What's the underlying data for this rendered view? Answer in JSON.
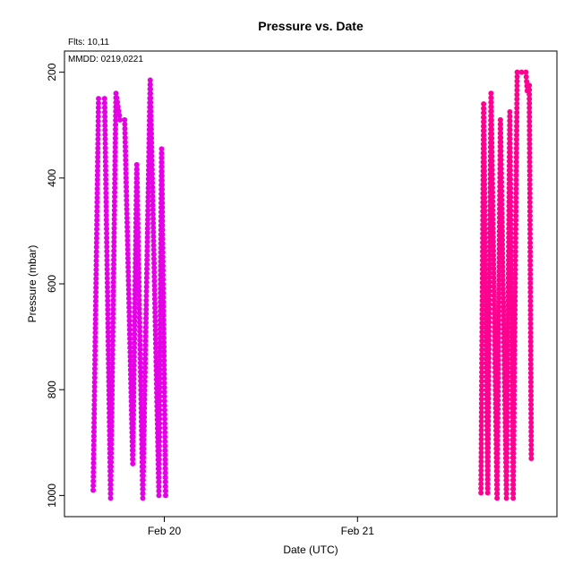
{
  "chart_data": {
    "type": "scatter",
    "title": "Pressure  vs. Date",
    "xlabel": "Date (UTC)",
    "ylabel": "Pressure (mbar)",
    "annotations": [
      "Flts: 10,11",
      "MMDD: 0219,0221"
    ],
    "x_ticks": [
      {
        "x": "2022-02-20T00:00",
        "label": "Feb 20"
      },
      {
        "x": "2022-02-21T00:00",
        "label": "Feb 21"
      }
    ],
    "y_ticks": [
      200,
      400,
      600,
      800,
      1000
    ],
    "xlim": [
      "2022-02-19T11:36",
      "2022-02-22T00:46"
    ],
    "ylim": [
      1040,
      160
    ],
    "y_reversed": true,
    "grid": false,
    "legend": "none",
    "series": [
      {
        "color": "#E600E6",
        "points": [
          [
            "2022-02-19T15:10",
            990
          ],
          [
            "2022-02-19T15:50",
            250
          ],
          [
            "2022-02-19T16:35",
            250
          ],
          [
            "2022-02-19T17:20",
            1005
          ],
          [
            "2022-02-19T18:00",
            240
          ],
          [
            "2022-02-19T18:30",
            290
          ],
          [
            "2022-02-19T19:05",
            290
          ],
          [
            "2022-02-19T20:05",
            940
          ],
          [
            "2022-02-19T20:35",
            375
          ],
          [
            "2022-02-19T21:20",
            1005
          ],
          [
            "2022-02-19T22:15",
            215
          ],
          [
            "2022-02-19T23:20",
            1000
          ],
          [
            "2022-02-19T23:40",
            345
          ],
          [
            "2022-02-20T00:10",
            1000
          ]
        ]
      },
      {
        "color": "#FF0090",
        "points": [
          [
            "2022-02-21T15:20",
            995
          ],
          [
            "2022-02-21T15:40",
            260
          ],
          [
            "2022-02-21T16:10",
            995
          ],
          [
            "2022-02-21T16:35",
            240
          ],
          [
            "2022-02-21T17:20",
            1005
          ],
          [
            "2022-02-21T17:45",
            290
          ],
          [
            "2022-02-21T18:30",
            1005
          ],
          [
            "2022-02-21T18:55",
            275
          ],
          [
            "2022-02-21T19:20",
            1005
          ],
          [
            "2022-02-21T19:50",
            200
          ],
          [
            "2022-02-21T20:55",
            200
          ],
          [
            "2022-02-21T21:05",
            235
          ],
          [
            "2022-02-21T21:20",
            225
          ],
          [
            "2022-02-21T21:35",
            930
          ]
        ]
      }
    ]
  }
}
